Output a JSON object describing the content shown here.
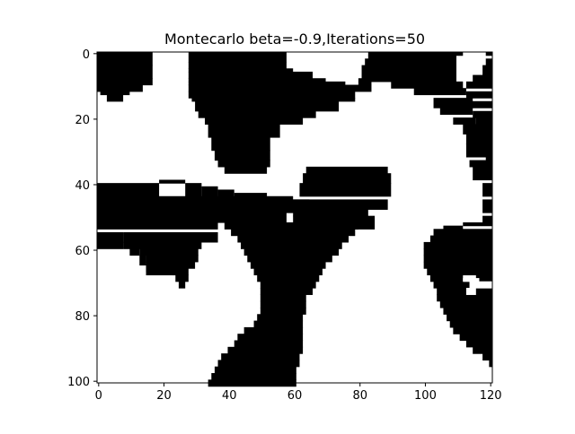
{
  "chart_data": {
    "type": "heatmap",
    "title": "Montecarlo beta=-0.9,Iterations=50",
    "colormap": [
      "#ffffff",
      "#000000"
    ],
    "grid": false,
    "xlim": [
      0,
      121
    ],
    "ylim": [
      101,
      0
    ],
    "x_ticks": [
      0,
      20,
      40,
      60,
      80,
      100,
      120
    ],
    "y_ticks": [
      0,
      20,
      40,
      60,
      80,
      100
    ],
    "x_tick_labels": [
      "0",
      "20",
      "40",
      "60",
      "80",
      "100",
      "120"
    ],
    "y_tick_labels": [
      "0",
      "20",
      "40",
      "60",
      "80",
      "100"
    ],
    "black_regions": [
      {
        "name": "top-left-blob",
        "rows": [
          [
            0,
            0,
            17
          ],
          [
            4,
            0,
            17
          ],
          [
            8,
            0,
            17
          ],
          [
            10,
            0,
            14
          ],
          [
            12,
            1,
            10
          ],
          [
            13,
            3,
            8
          ]
        ]
      },
      {
        "name": "top-center-blob",
        "rows": [
          [
            0,
            28,
            58
          ],
          [
            3,
            28,
            58
          ],
          [
            5,
            28,
            60
          ],
          [
            6,
            28,
            66
          ],
          [
            8,
            28,
            70
          ],
          [
            8,
            80,
            84
          ],
          [
            9,
            28,
            76
          ],
          [
            9,
            80,
            84
          ],
          [
            10,
            28,
            84
          ],
          [
            12,
            28,
            79
          ],
          [
            14,
            29,
            79
          ],
          [
            15,
            30,
            74
          ],
          [
            18,
            31,
            67
          ],
          [
            20,
            33,
            63
          ],
          [
            22,
            34,
            56
          ],
          [
            26,
            35,
            53
          ],
          [
            30,
            36,
            53
          ],
          [
            33,
            37,
            53
          ],
          [
            35,
            39,
            52
          ]
        ]
      },
      {
        "name": "top-right-blob",
        "rows": [
          [
            0,
            83,
            112
          ],
          [
            1,
            83,
            110
          ],
          [
            2,
            82,
            110
          ],
          [
            4,
            81,
            110
          ],
          [
            7,
            81,
            110
          ],
          [
            9,
            90,
            112
          ],
          [
            11,
            97,
            113
          ],
          [
            14,
            103,
            115
          ],
          [
            17,
            105,
            115
          ],
          [
            20,
            109,
            116
          ],
          [
            22,
            112,
            118
          ],
          [
            25,
            113,
            121
          ],
          [
            28,
            113,
            121
          ],
          [
            33,
            114,
            121
          ],
          [
            35,
            115,
            121
          ],
          [
            40,
            118,
            121
          ],
          [
            45,
            118,
            121
          ],
          [
            50,
            118,
            121
          ],
          [
            0,
            119,
            121
          ],
          [
            2,
            119,
            121
          ],
          [
            4,
            118,
            121
          ],
          [
            7,
            115,
            121
          ],
          [
            9,
            113,
            121
          ],
          [
            12,
            113,
            121
          ],
          [
            15,
            114,
            121
          ],
          [
            18,
            115,
            121
          ],
          [
            20,
            116,
            121
          ],
          [
            22,
            117,
            121
          ],
          [
            25,
            117,
            121
          ],
          [
            28,
            117,
            121
          ],
          [
            30,
            119,
            121
          ]
        ]
      },
      {
        "name": "left-band",
        "rows": [
          [
            40,
            0,
            19
          ],
          [
            39,
            19,
            27
          ],
          [
            40,
            27,
            32
          ],
          [
            41,
            32,
            37
          ],
          [
            42,
            37,
            42
          ],
          [
            43,
            42,
            52
          ],
          [
            45,
            52,
            65
          ],
          [
            46,
            65,
            74
          ],
          [
            47,
            74,
            79
          ],
          [
            50,
            79,
            85
          ],
          [
            55,
            0,
            8
          ],
          [
            58,
            0,
            8
          ],
          [
            60,
            10,
            13
          ],
          [
            62,
            13,
            15
          ],
          [
            65,
            15,
            23
          ],
          [
            67,
            23,
            27
          ],
          [
            68,
            24,
            28
          ],
          [
            70,
            25,
            27
          ]
        ]
      },
      {
        "name": "left-band-lower",
        "rows": [
          [
            44,
            0,
            60
          ],
          [
            48,
            0,
            58
          ],
          [
            52,
            0,
            37
          ],
          [
            55,
            8,
            37
          ],
          [
            58,
            8,
            32
          ],
          [
            60,
            13,
            31
          ],
          [
            62,
            15,
            31
          ],
          [
            64,
            15,
            30
          ],
          [
            66,
            15,
            28
          ]
        ]
      },
      {
        "name": "central-trunk",
        "rows": [
          [
            35,
            64,
            89
          ],
          [
            37,
            63,
            90
          ],
          [
            40,
            62,
            90
          ],
          [
            45,
            60,
            89
          ],
          [
            48,
            60,
            83
          ],
          [
            50,
            60,
            82
          ],
          [
            52,
            39,
            80
          ],
          [
            54,
            41,
            79
          ],
          [
            56,
            43,
            77
          ],
          [
            58,
            44,
            75
          ],
          [
            60,
            45,
            74
          ],
          [
            62,
            46,
            72
          ],
          [
            64,
            47,
            70
          ],
          [
            66,
            48,
            69
          ],
          [
            68,
            49,
            68
          ],
          [
            70,
            50,
            67
          ],
          [
            72,
            50,
            66
          ],
          [
            74,
            50,
            64
          ],
          [
            76,
            50,
            64
          ],
          [
            78,
            50,
            64
          ],
          [
            80,
            49,
            63
          ],
          [
            82,
            48,
            63
          ],
          [
            84,
            45,
            63
          ],
          [
            86,
            43,
            63
          ],
          [
            88,
            42,
            63
          ],
          [
            90,
            40,
            63
          ],
          [
            92,
            38,
            62
          ],
          [
            94,
            37,
            62
          ],
          [
            96,
            36,
            61
          ],
          [
            98,
            35,
            61
          ],
          [
            100,
            34,
            61
          ]
        ]
      },
      {
        "name": "right-blob",
        "rows": [
          [
            53,
            106,
            112
          ],
          [
            52,
            112,
            121
          ],
          [
            54,
            103,
            121
          ],
          [
            56,
            102,
            121
          ],
          [
            58,
            100,
            121
          ],
          [
            60,
            100,
            121
          ],
          [
            62,
            100,
            121
          ],
          [
            64,
            100,
            121
          ],
          [
            66,
            101,
            121
          ],
          [
            68,
            102,
            112
          ],
          [
            68,
            116,
            121
          ],
          [
            70,
            103,
            121
          ],
          [
            72,
            104,
            121
          ],
          [
            74,
            104,
            121
          ],
          [
            76,
            105,
            121
          ],
          [
            78,
            106,
            121
          ],
          [
            80,
            107,
            121
          ],
          [
            82,
            108,
            121
          ],
          [
            84,
            109,
            121
          ],
          [
            86,
            111,
            121
          ],
          [
            88,
            113,
            121
          ],
          [
            90,
            115,
            121
          ],
          [
            92,
            118,
            121
          ],
          [
            94,
            120,
            121
          ]
        ]
      }
    ],
    "white_holes": [
      {
        "name": "right-blob-hole",
        "rows": [
          [
            69,
            112,
            117
          ],
          [
            70,
            114,
            121
          ],
          [
            72,
            113,
            116
          ]
        ]
      }
    ]
  }
}
